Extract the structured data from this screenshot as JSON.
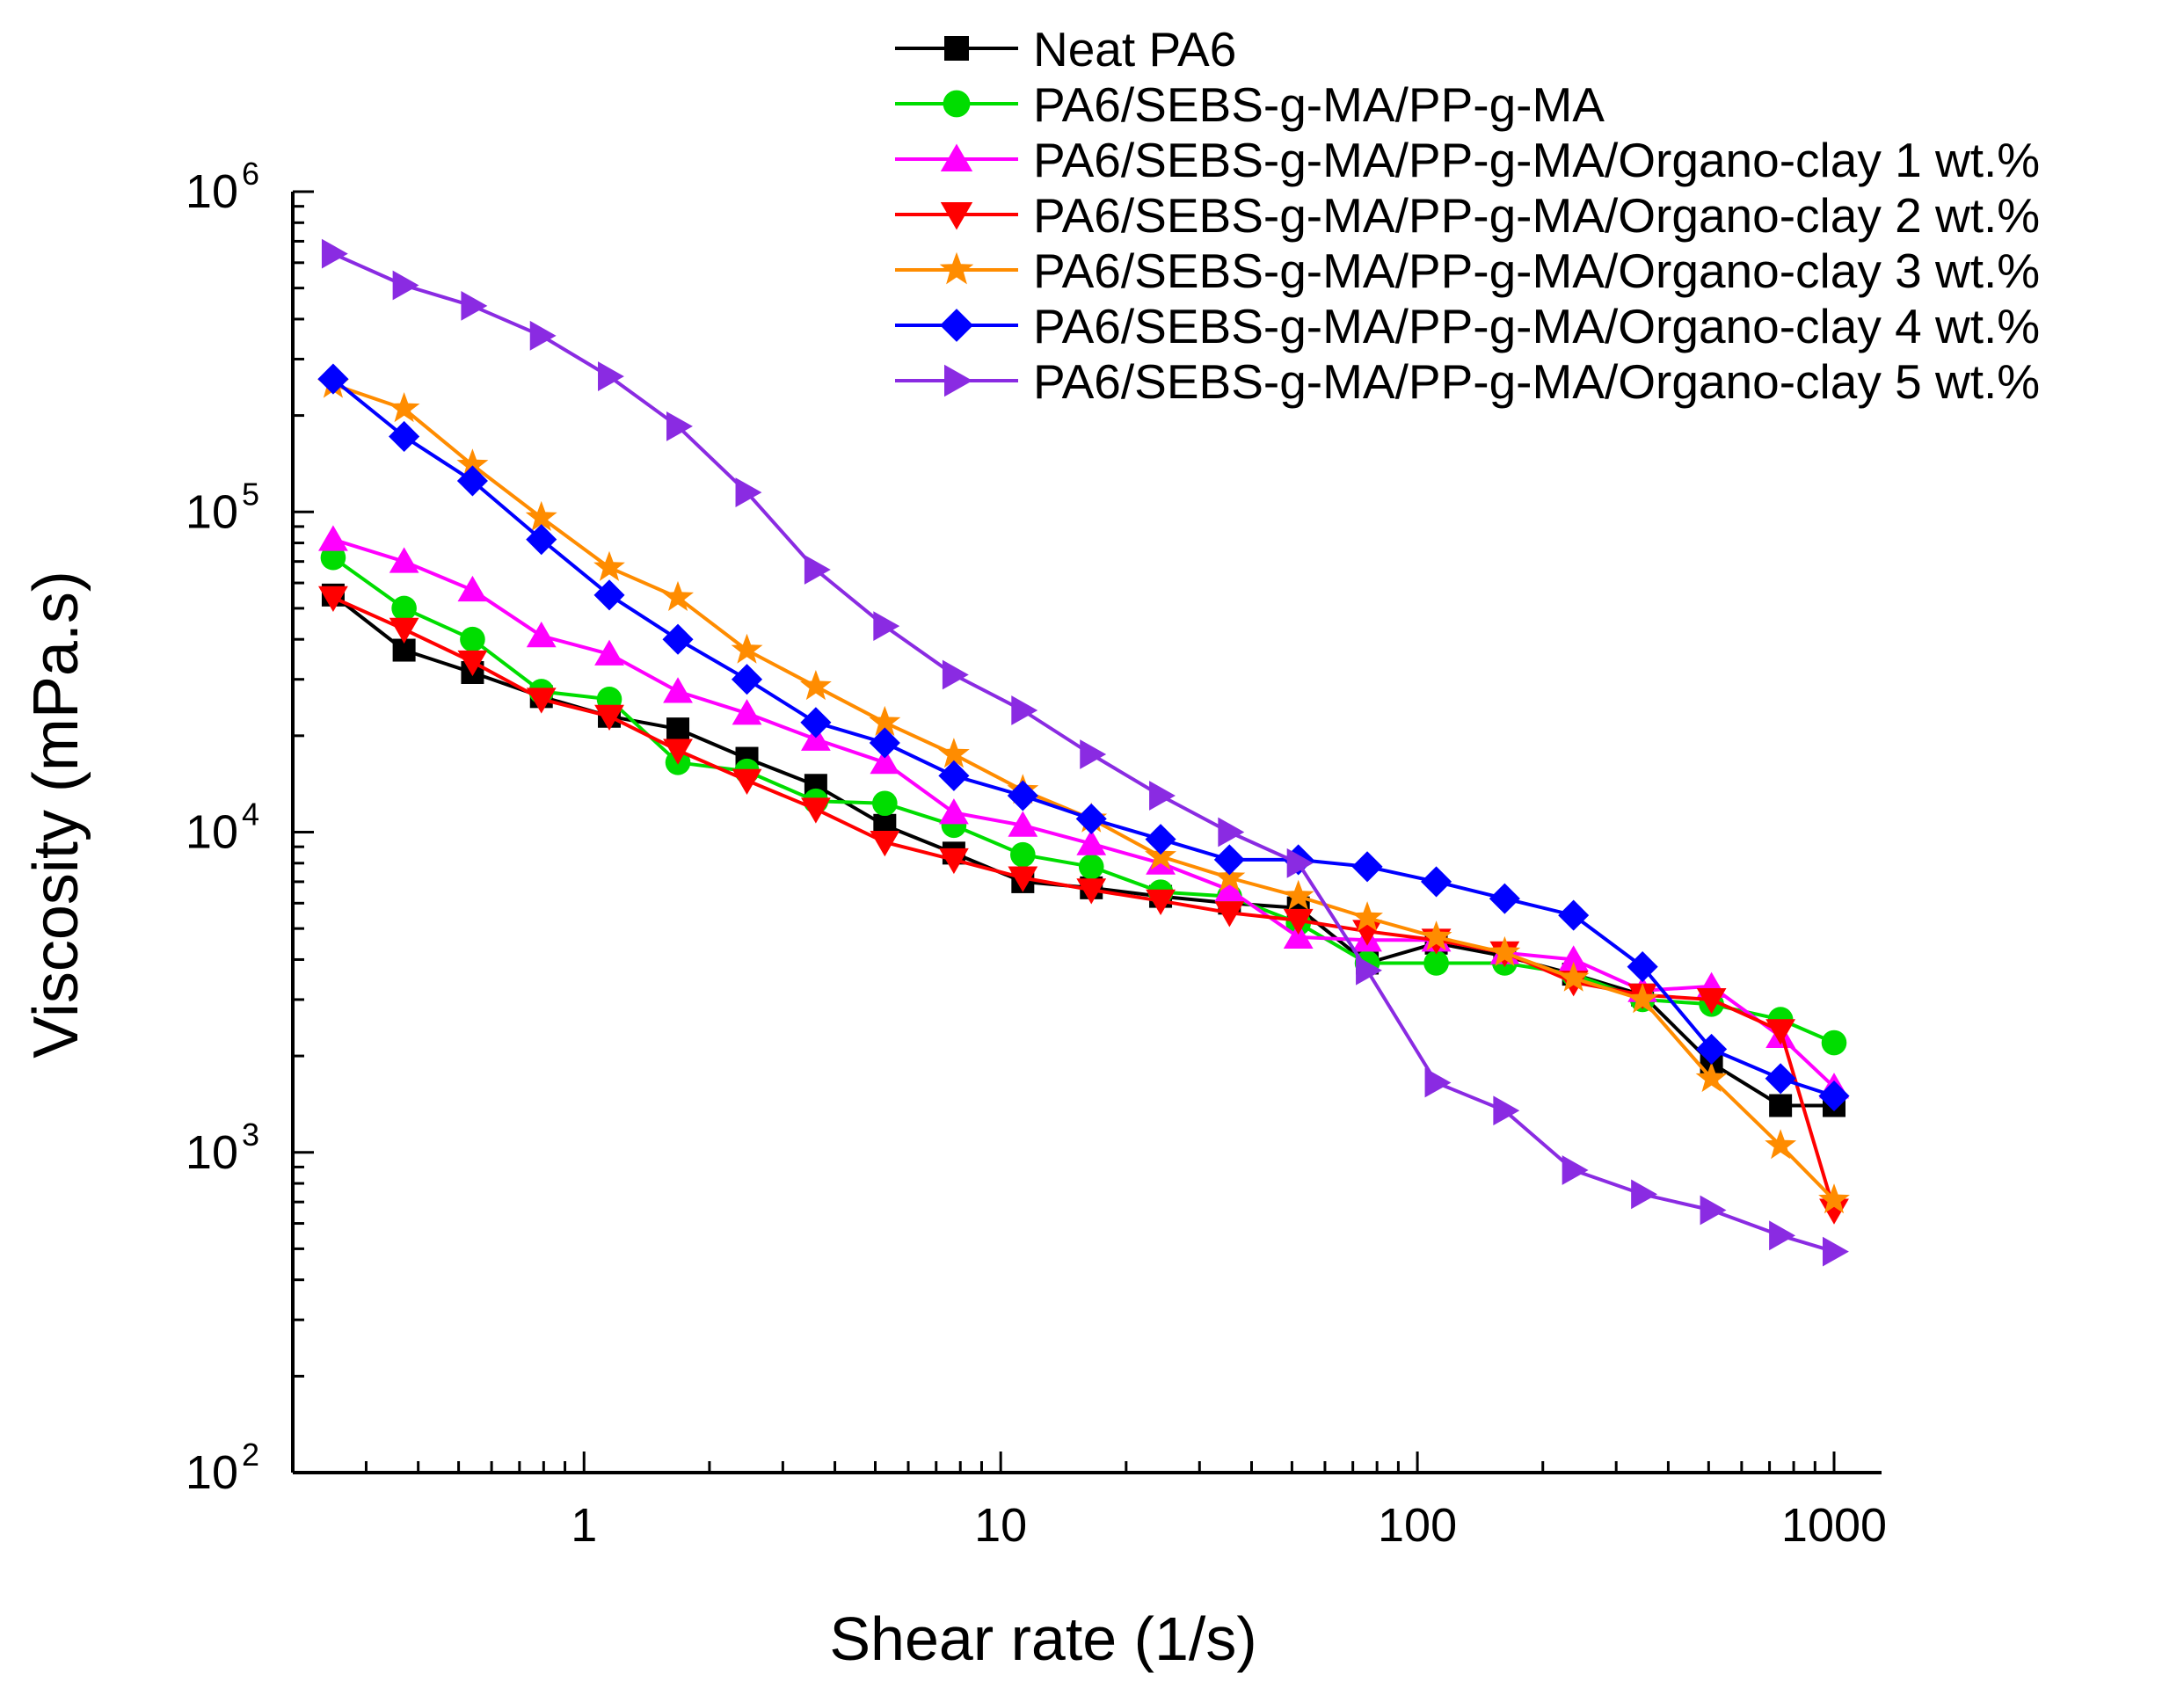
{
  "chart_data": {
    "type": "line",
    "xscale": "log",
    "yscale": "log",
    "xlabel": "Shear rate (1/s)",
    "ylabel": "Viscosity  (mPa.s)",
    "xlim": [
      0.2,
      1300
    ],
    "ylim": [
      100,
      1000000
    ],
    "legend_position": "top-right",
    "x_ticks": [
      {
        "value": 1,
        "label": "1"
      },
      {
        "value": 10,
        "label": "10"
      },
      {
        "value": 100,
        "label": "100"
      },
      {
        "value": 1000,
        "label": "1000"
      }
    ],
    "y_ticks": [
      {
        "value": 100,
        "base": "10",
        "exp": "2"
      },
      {
        "value": 1000,
        "base": "10",
        "exp": "3"
      },
      {
        "value": 10000,
        "base": "10",
        "exp": "4"
      },
      {
        "value": 100000,
        "base": "10",
        "exp": "5"
      },
      {
        "value": 1000000,
        "base": "10",
        "exp": "6"
      }
    ],
    "x": [
      0.25,
      0.37,
      0.54,
      0.79,
      1.15,
      1.68,
      2.46,
      3.6,
      5.27,
      7.72,
      11.3,
      16.5,
      24.2,
      35.4,
      51.8,
      75.8,
      111,
      162,
      237,
      347,
      508,
      744,
      1000
    ],
    "series": [
      {
        "name": "Neat PA6",
        "color": "#000000",
        "marker": "square",
        "values": [
          55000,
          37000,
          31500,
          26500,
          23000,
          21000,
          17000,
          14000,
          10500,
          8600,
          7000,
          6700,
          6300,
          6000,
          5800,
          3900,
          4500,
          4100,
          3600,
          3100,
          1900,
          1400,
          1400
        ]
      },
      {
        "name": "PA6/SEBS-g-MA/PP-g-MA",
        "color": "#00dd00",
        "marker": "circle",
        "values": [
          72000,
          50000,
          40000,
          27500,
          26000,
          16500,
          15500,
          12500,
          12300,
          10500,
          8500,
          7800,
          6500,
          6300,
          5200,
          3900,
          3900,
          3900,
          3600,
          3000,
          2900,
          2600,
          2200
        ]
      },
      {
        "name": "PA6/SEBS-g-MA/PP-g-MA/Organo-clay 1 wt.%",
        "color": "#ff00ff",
        "marker": "triangle-up",
        "values": [
          82000,
          70000,
          57000,
          41000,
          36000,
          27500,
          23500,
          19500,
          16500,
          11500,
          10500,
          9200,
          8000,
          6600,
          4700,
          4600,
          4600,
          4200,
          4000,
          3200,
          3300,
          2300,
          1600
        ]
      },
      {
        "name": "PA6/SEBS-g-MA/PP-g-MA/Organo-clay 2 wt.%",
        "color": "#ff0000",
        "marker": "triangle-down",
        "values": [
          54000,
          43000,
          34000,
          26000,
          23000,
          18000,
          14500,
          11800,
          9300,
          8200,
          7200,
          6600,
          6100,
          5600,
          5300,
          4900,
          4600,
          4200,
          3400,
          3100,
          3000,
          2400,
          660
        ]
      },
      {
        "name": "PA6/SEBS-g-MA/PP-g-MA/Organo-clay 3 wt.%",
        "color": "#ff8c00",
        "marker": "star",
        "values": [
          250000,
          210000,
          140000,
          96000,
          67000,
          54000,
          37000,
          28500,
          22000,
          17500,
          13500,
          11000,
          8400,
          7200,
          6300,
          5400,
          4700,
          4200,
          3500,
          3000,
          1700,
          1050,
          710
        ]
      },
      {
        "name": "PA6/SEBS-g-MA/PP-g-MA/Organo-clay 4 wt.%",
        "color": "#0000ff",
        "marker": "diamond",
        "values": [
          260000,
          172000,
          125000,
          82000,
          55000,
          40000,
          30000,
          22000,
          19000,
          15000,
          13000,
          11000,
          9500,
          8200,
          8200,
          7800,
          7000,
          6200,
          5500,
          3800,
          2100,
          1700,
          1500
        ]
      },
      {
        "name": "PA6/SEBS-g-MA/PP-g-MA/Organo-clay 5 wt.%",
        "color": "#8a2be2",
        "marker": "triangle-right",
        "values": [
          640000,
          510000,
          440000,
          355000,
          265000,
          185000,
          115000,
          66000,
          44000,
          31000,
          24000,
          17500,
          13000,
          10000,
          8000,
          3700,
          1650,
          1350,
          880,
          740,
          660,
          550,
          490
        ]
      }
    ]
  }
}
